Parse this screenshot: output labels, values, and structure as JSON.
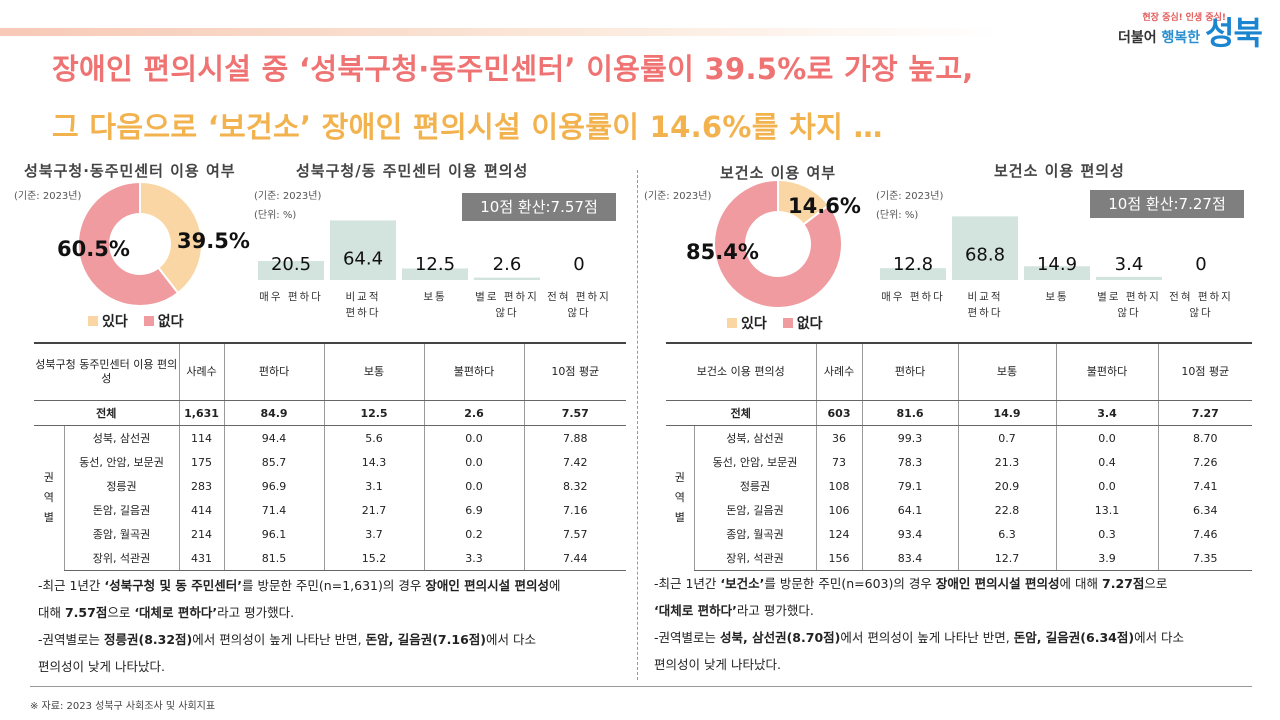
{
  "headline": {
    "line1": "장애인 편의시설 중 ‘성북구청·동주민센터’ 이용률이 39.5%로 가장 높고,",
    "line2": "그 다음으로 ‘보건소’ 장애인 편의시설 이용률이 14.6%를 차지 …"
  },
  "logo": {
    "slogan_a": "현장 중심!",
    "slogan_b": "인생 중심!",
    "mid_a": "더불어",
    "mid_b": "행복한",
    "name": "성북"
  },
  "colors": {
    "yes": "#f9d6a4",
    "no": "#ef9ba0",
    "bar": "#d3e3dd",
    "headline1": "#ef7373",
    "headline2": "#f2b24e"
  },
  "left": {
    "usage_title": "성북구청·동주민센터 이용 여부",
    "conv_title": "성북구청/동 주민센터 이용 편의성",
    "base_note": "(기준: 2023년)",
    "unit_note": "(단위: %)",
    "score_box": "10점 환산:7.57점",
    "table_header": [
      "성북구청 동주민센터 이용 편의성",
      "사례수",
      "편하다",
      "보통",
      "불편하다",
      "10점 평균"
    ],
    "total_row": [
      "전체",
      "1,631",
      "84.9",
      "12.5",
      "2.6",
      "7.57"
    ],
    "group_label": [
      "권",
      "역",
      "별"
    ],
    "rows": [
      [
        "성북, 삼선권",
        "114",
        "94.4",
        "5.6",
        "0.0",
        "7.88"
      ],
      [
        "동선, 안암, 보문권",
        "175",
        "85.7",
        "14.3",
        "0.0",
        "7.42"
      ],
      [
        "정릉권",
        "283",
        "96.9",
        "3.1",
        "0.0",
        "8.32"
      ],
      [
        "돈암, 길음권",
        "414",
        "71.4",
        "21.7",
        "6.9",
        "7.16"
      ],
      [
        "종암, 월곡권",
        "214",
        "96.1",
        "3.7",
        "0.2",
        "7.57"
      ],
      [
        "장위, 석관권",
        "431",
        "81.5",
        "15.2",
        "3.3",
        "7.44"
      ]
    ],
    "note1_a": "-최근 1년간 ",
    "note1_b": "‘성북구청 및 동 주민센터’",
    "note1_c": "를 방문한 주민(n=1,631)의 경우 ",
    "note1_d": "장애인 편의시설 편의성",
    "note1_e": "에",
    "note2_a": "대해 ",
    "note2_b": "7.57점",
    "note2_c": "으로 ",
    "note2_d": "‘대체로 편하다’",
    "note2_e": "라고 평가했다.",
    "note3_a": "-권역별로는 ",
    "note3_b": "정릉권(8.32점)",
    "note3_c": "에서 편의성이 높게 나타난 반면, ",
    "note3_d": "돈암, 길음권(7.16점)",
    "note3_e": "에서 다소",
    "note4": "편의성이 낮게 나타났다."
  },
  "right": {
    "usage_title": "보건소 이용 여부",
    "conv_title": "보건소 이용 편의성",
    "base_note": "(기준: 2023년)",
    "unit_note": "(단위: %)",
    "score_box": "10점 환산:7.27점",
    "table_header": [
      "보건소 이용 편의성",
      "사례수",
      "편하다",
      "보통",
      "불편하다",
      "10점 평균"
    ],
    "total_row": [
      "전체",
      "603",
      "81.6",
      "14.9",
      "3.4",
      "7.27"
    ],
    "group_label": [
      "권",
      "역",
      "별"
    ],
    "rows": [
      [
        "성북, 삼선권",
        "36",
        "99.3",
        "0.7",
        "0.0",
        "8.70"
      ],
      [
        "동선, 안암, 보문권",
        "73",
        "78.3",
        "21.3",
        "0.4",
        "7.26"
      ],
      [
        "정릉권",
        "108",
        "79.1",
        "20.9",
        "0.0",
        "7.41"
      ],
      [
        "돈암, 길음권",
        "106",
        "64.1",
        "22.8",
        "13.1",
        "6.34"
      ],
      [
        "종암, 월곡권",
        "124",
        "93.4",
        "6.3",
        "0.3",
        "7.46"
      ],
      [
        "장위, 석관권",
        "156",
        "83.4",
        "12.7",
        "3.9",
        "7.35"
      ]
    ],
    "note1_a": "-최근 1년간 ",
    "note1_b": "‘보건소’",
    "note1_c": "를 방문한 주민(n=603)의 경우 ",
    "note1_d": "장애인 편의시설 편의성",
    "note1_e": "에 대해 ",
    "note1_f": "7.27점",
    "note1_g": "으로",
    "note2_a": "‘대체로 편하다’",
    "note2_b": "라고 평가했다.",
    "note3_a": "-권역별로는 ",
    "note3_b": "성북, 삼선권(8.70점)",
    "note3_c": "에서 편의성이 높게 나타난 반면, ",
    "note3_d": "돈암, 길음권(6.34점)",
    "note3_e": "에서 다소",
    "note4": "편의성이 낮게 나타났다."
  },
  "source": "※ 자료: 2023 성북구 사회조사 및 사회지표",
  "chart_data": [
    {
      "type": "pie",
      "title": "성북구청·동주민센터 이용 여부",
      "labels": [
        "있다",
        "없다"
      ],
      "values": [
        39.5,
        60.5
      ],
      "value_labels": [
        "39.5%",
        "60.5%"
      ],
      "colors": [
        "#f9d6a4",
        "#ef9ba0"
      ],
      "legend": "bottom"
    },
    {
      "type": "bar",
      "title": "성북구청/동 주민센터 이용 편의성",
      "categories": [
        "매우 편하다",
        "비교적 편하다",
        "보통",
        "별로 편하지 않다",
        "전혀 편하지 않다"
      ],
      "values": [
        20.5,
        64.4,
        12.5,
        2.6,
        0
      ],
      "value_labels": [
        "20.5",
        "64.4",
        "12.5",
        "2.6",
        "0"
      ],
      "ylim": [
        0,
        80
      ]
    },
    {
      "type": "pie",
      "title": "보건소 이용 여부",
      "labels": [
        "있다",
        "없다"
      ],
      "values": [
        14.6,
        85.4
      ],
      "value_labels": [
        "14.6%",
        "85.4%"
      ],
      "colors": [
        "#f9d6a4",
        "#ef9ba0"
      ],
      "legend": "bottom"
    },
    {
      "type": "bar",
      "title": "보건소 이용 편의성",
      "categories": [
        "매우 편하다",
        "비교적 편하다",
        "보통",
        "별로 편하지 않다",
        "전혀 편하지 않다"
      ],
      "values": [
        12.8,
        68.8,
        14.9,
        3.4,
        0
      ],
      "value_labels": [
        "12.8",
        "68.8",
        "14.9",
        "3.4",
        "0"
      ],
      "ylim": [
        0,
        80
      ]
    }
  ]
}
